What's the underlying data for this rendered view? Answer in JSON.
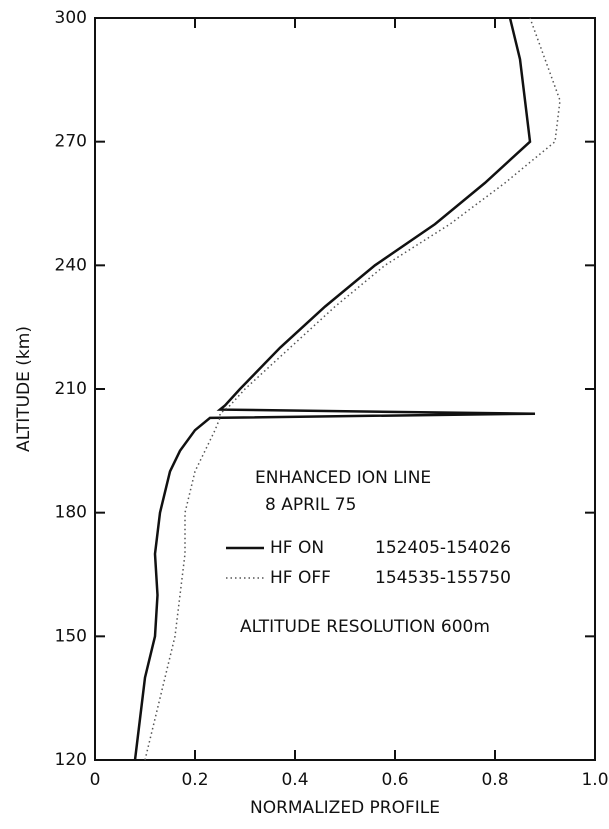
{
  "chart_data": {
    "type": "line",
    "orientation": "vertical",
    "xlabel": "NORMALIZED PROFILE",
    "ylabel": "ALTITUDE (km)",
    "annotations": [
      "ENHANCED ION LINE",
      "8 APRIL 75",
      "ALTITUDE RESOLUTION 600m"
    ],
    "y": [
      120,
      130,
      140,
      150,
      160,
      170,
      180,
      190,
      195,
      200,
      203,
      204,
      205,
      206,
      210,
      220,
      230,
      240,
      250,
      260,
      270,
      280,
      290,
      300
    ],
    "series": [
      {
        "name": "HF ON",
        "time": "152405-154026",
        "color": "#111111",
        "style": "solid",
        "values": [
          0.08,
          0.09,
          0.1,
          0.12,
          0.125,
          0.12,
          0.13,
          0.15,
          0.17,
          0.2,
          0.23,
          0.88,
          0.25,
          0.26,
          0.29,
          0.37,
          0.46,
          0.56,
          0.68,
          0.78,
          0.87,
          0.86,
          0.85,
          0.83
        ]
      },
      {
        "name": "HF OFF",
        "time": "154535-155750",
        "color": "#555555",
        "style": "dotted",
        "values": [
          0.1,
          0.12,
          0.14,
          0.16,
          0.17,
          0.18,
          0.18,
          0.2,
          0.22,
          0.24,
          0.25,
          0.25,
          0.26,
          0.27,
          0.3,
          0.39,
          0.48,
          0.58,
          0.71,
          0.82,
          0.92,
          0.93,
          0.9,
          0.87
        ]
      }
    ],
    "xlim": [
      0,
      1
    ],
    "xticks": [
      0,
      0.2,
      0.4,
      0.6,
      0.8,
      {
        "value": 1,
        "label": "1.0"
      }
    ],
    "ylim": [
      120,
      300
    ],
    "yticks": [
      120,
      150,
      180,
      210,
      240,
      270,
      300
    ]
  }
}
